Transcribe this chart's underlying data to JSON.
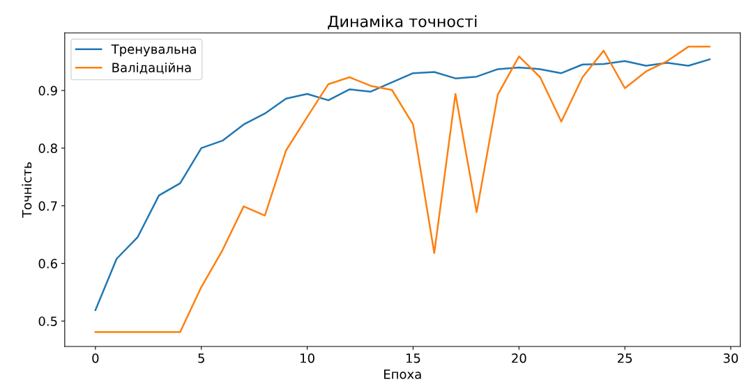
{
  "chart_data": {
    "type": "line",
    "title": "Динаміка точності",
    "xlabel": "Епоха",
    "ylabel": "Точність",
    "x": [
      0,
      1,
      2,
      3,
      4,
      5,
      6,
      7,
      8,
      9,
      10,
      11,
      12,
      13,
      14,
      15,
      16,
      17,
      18,
      19,
      20,
      21,
      22,
      23,
      24,
      25,
      26,
      27,
      28,
      29
    ],
    "series": [
      {
        "name": "Тренувальна",
        "color": "#1f77b4",
        "values": [
          0.519,
          0.608,
          0.646,
          0.718,
          0.739,
          0.8,
          0.813,
          0.841,
          0.86,
          0.886,
          0.894,
          0.883,
          0.902,
          0.898,
          0.914,
          0.93,
          0.932,
          0.921,
          0.924,
          0.937,
          0.94,
          0.937,
          0.93,
          0.945,
          0.946,
          0.951,
          0.943,
          0.948,
          0.943,
          0.954
        ]
      },
      {
        "name": "Валідаційна",
        "color": "#ff7f0e",
        "values": [
          0.481,
          0.481,
          0.481,
          0.481,
          0.481,
          0.559,
          0.623,
          0.699,
          0.683,
          0.796,
          0.854,
          0.911,
          0.923,
          0.908,
          0.901,
          0.841,
          0.618,
          0.894,
          0.689,
          0.893,
          0.959,
          0.923,
          0.846,
          0.923,
          0.969,
          0.904,
          0.933,
          0.951,
          0.976,
          0.976
        ]
      }
    ],
    "xlim": [
      -1.45,
      30.45
    ],
    "xticks": [
      0,
      5,
      10,
      15,
      20,
      25,
      30
    ],
    "ylim": [
      0.456,
      1.0
    ],
    "yticks": [
      0.5,
      0.6,
      0.7,
      0.8,
      0.9
    ],
    "grid": false,
    "legend": "top left",
    "marker": "none",
    "line_style": "solid"
  }
}
